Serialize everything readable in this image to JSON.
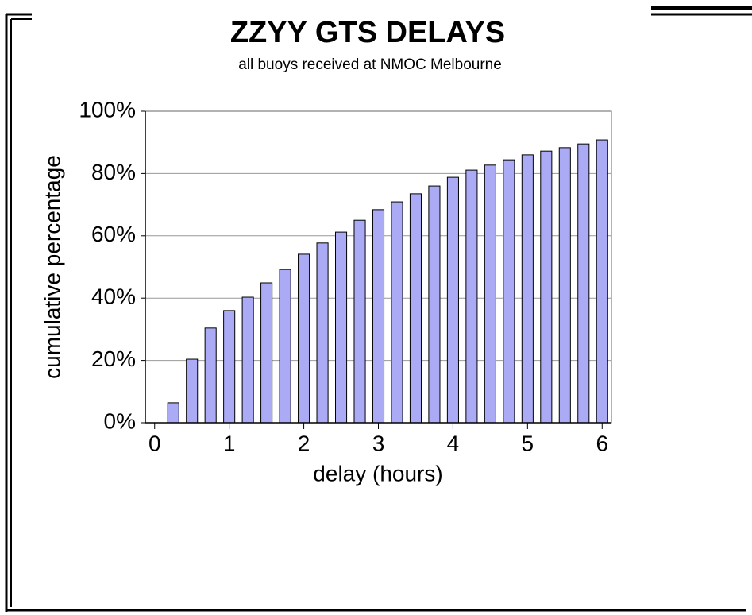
{
  "chart_data": {
    "type": "bar",
    "title": "ZZYY GTS DELAYS",
    "subtitle": "all buoys received at NMOC Melbourne",
    "x_label": "delay (hours)",
    "y_label": "cumulative percentage",
    "x": [
      0.25,
      0.5,
      0.75,
      1,
      1.25,
      1.5,
      1.75,
      2,
      2.25,
      2.5,
      2.75,
      3,
      3.25,
      3.5,
      3.75,
      4,
      4.25,
      4.5,
      4.75,
      5,
      5.25,
      5.5,
      5.75,
      6
    ],
    "values": [
      6.4,
      20.4,
      30.4,
      36,
      40.3,
      44.9,
      49.2,
      54.1,
      57.7,
      61.2,
      65,
      68.4,
      70.9,
      73.5,
      76,
      78.8,
      81.1,
      82.7,
      84.4,
      86,
      87.2,
      88.3,
      89.5,
      90.8
    ],
    "color": "#aaaaf5",
    "xlim": [
      -0.125,
      6.125
    ],
    "xticks": [
      0,
      1,
      2,
      3,
      4,
      5,
      6
    ],
    "ylim": [
      0,
      100
    ],
    "yticks": [
      {
        "value": 0,
        "label": "0%"
      },
      {
        "value": 20,
        "label": "20%"
      },
      {
        "value": 40,
        "label": "40%"
      },
      {
        "value": 60,
        "label": "60%"
      },
      {
        "value": 80,
        "label": "80%"
      },
      {
        "value": 100,
        "label": "100%"
      }
    ],
    "grid": true
  }
}
